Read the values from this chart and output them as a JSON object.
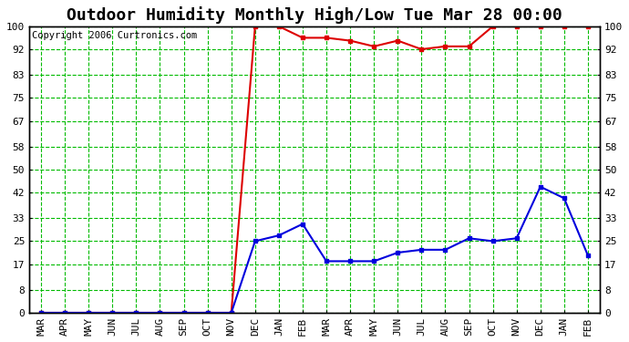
{
  "title": "Outdoor Humidity Monthly High/Low Tue Mar 28 00:00",
  "copyright": "Copyright 2006 Curtronics.com",
  "x_labels": [
    "MAR",
    "APR",
    "MAY",
    "JUN",
    "JUL",
    "AUG",
    "SEP",
    "OCT",
    "NOV",
    "DEC",
    "JAN",
    "FEB",
    "MAR",
    "APR",
    "MAY",
    "JUN",
    "JUL",
    "AUG",
    "SEP",
    "OCT",
    "NOV",
    "DEC",
    "JAN",
    "FEB"
  ],
  "high_values": [
    0,
    0,
    0,
    0,
    0,
    0,
    0,
    0,
    0,
    100,
    100,
    96,
    96,
    95,
    93,
    95,
    92,
    93,
    93,
    100,
    100,
    100,
    100,
    100
  ],
  "low_values": [
    0,
    0,
    0,
    0,
    0,
    0,
    0,
    0,
    0,
    25,
    27,
    31,
    18,
    18,
    18,
    21,
    22,
    22,
    26,
    25,
    26,
    44,
    40,
    20
  ],
  "high_color": "#dd0000",
  "low_color": "#0000dd",
  "bg_color": "#ffffff",
  "plot_bg_color": "#ffffff",
  "grid_color": "#00bb00",
  "yticks": [
    0,
    8,
    17,
    25,
    33,
    42,
    50,
    58,
    67,
    75,
    83,
    92,
    100
  ],
  "ylim": [
    0,
    100
  ],
  "title_fontsize": 13,
  "label_fontsize": 8,
  "copyright_fontsize": 7.5,
  "border_color": "#000000",
  "fig_width": 6.9,
  "fig_height": 3.75,
  "dpi": 100
}
